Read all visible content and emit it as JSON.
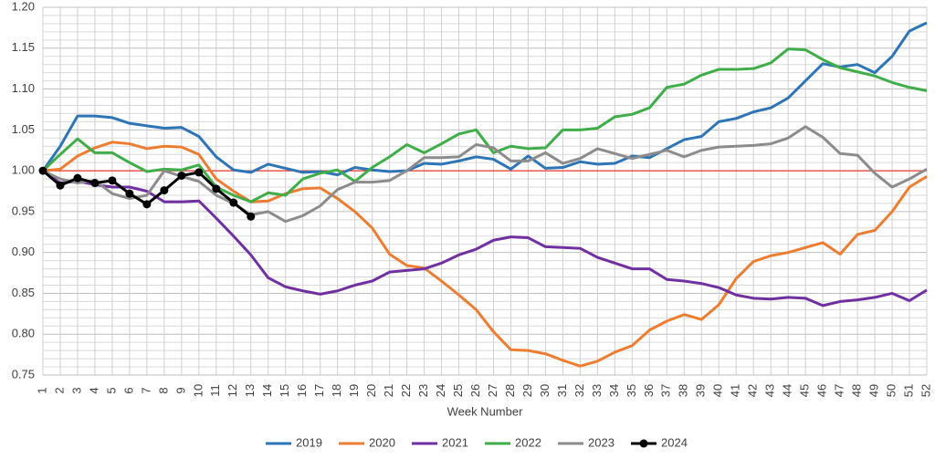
{
  "chart_data": {
    "type": "line",
    "x_label": "Week Number",
    "categories": [
      "1",
      "2",
      "3",
      "4",
      "5",
      "6",
      "7",
      "8",
      "9",
      "10",
      "11",
      "12",
      "13",
      "14",
      "15",
      "16",
      "17",
      "18",
      "19",
      "20",
      "21",
      "22",
      "23",
      "24",
      "25",
      "26",
      "27",
      "28",
      "29",
      "30",
      "31",
      "32",
      "33",
      "34",
      "35",
      "36",
      "37",
      "38",
      "39",
      "40",
      "41",
      "42",
      "43",
      "44",
      "45",
      "46",
      "47",
      "48",
      "49",
      "50",
      "51",
      "52"
    ],
    "ylim": [
      0.75,
      1.2
    ],
    "yticks": [
      0.75,
      {
        "value": 0.8,
        "label": "0.80"
      },
      0.85,
      {
        "value": 0.9,
        "label": "0.90"
      },
      0.95,
      {
        "value": 1.0,
        "label": "1.00"
      },
      1.05,
      {
        "value": 1.1,
        "label": "1.10"
      },
      1.15,
      {
        "value": 1.2,
        "label": "1.20"
      }
    ],
    "grid": true,
    "reference_line": {
      "value": 1.0,
      "color": "#e8382c"
    },
    "legend": "bottom",
    "series": [
      {
        "name": "2019",
        "color": "#2e75b6",
        "values": [
          1.0,
          1.03,
          1.067,
          1.067,
          1.065,
          1.058,
          1.055,
          1.052,
          1.053,
          1.042,
          1.017,
          1.001,
          0.998,
          1.008,
          1.003,
          0.998,
          0.999,
          0.995,
          1.004,
          1.001,
          0.999,
          1.0,
          1.009,
          1.008,
          1.012,
          1.017,
          1.014,
          1.002,
          1.018,
          1.003,
          1.004,
          1.011,
          1.008,
          1.009,
          1.018,
          1.016,
          1.027,
          1.038,
          1.042,
          1.06,
          1.064,
          1.072,
          1.077,
          1.089,
          1.11,
          1.131,
          1.127,
          1.13,
          1.12,
          1.14,
          1.171,
          1.181
        ]
      },
      {
        "name": "2020",
        "color": "#ed7d31",
        "values": [
          1.0,
          1.002,
          1.018,
          1.028,
          1.035,
          1.033,
          1.027,
          1.03,
          1.029,
          1.02,
          0.99,
          0.975,
          0.962,
          0.963,
          0.972,
          0.978,
          0.979,
          0.966,
          0.95,
          0.93,
          0.898,
          0.884,
          0.881,
          0.865,
          0.848,
          0.83,
          0.803,
          0.781,
          0.78,
          0.776,
          0.768,
          0.761,
          0.767,
          0.778,
          0.786,
          0.805,
          0.816,
          0.824,
          0.818,
          0.836,
          0.868,
          0.889,
          0.896,
          0.9,
          0.906,
          0.912,
          0.898,
          0.922,
          0.927,
          0.95,
          0.98,
          0.993
        ]
      },
      {
        "name": "2021",
        "color": "#7030a0",
        "values": [
          1.0,
          0.985,
          0.987,
          0.983,
          0.98,
          0.98,
          0.975,
          0.962,
          0.962,
          0.963,
          0.942,
          0.92,
          0.897,
          0.869,
          0.858,
          0.853,
          0.849,
          0.853,
          0.86,
          0.865,
          0.876,
          0.878,
          0.88,
          0.887,
          0.897,
          0.904,
          0.915,
          0.919,
          0.918,
          0.907,
          0.906,
          0.905,
          0.894,
          0.887,
          0.88,
          0.88,
          0.867,
          0.865,
          0.862,
          0.857,
          0.848,
          0.844,
          0.843,
          0.845,
          0.844,
          0.835,
          0.84,
          0.842,
          0.845,
          0.85,
          0.841,
          0.854
        ]
      },
      {
        "name": "2022",
        "color": "#3fae49",
        "values": [
          1.0,
          1.02,
          1.039,
          1.022,
          1.022,
          1.01,
          0.999,
          1.002,
          1.001,
          1.007,
          0.98,
          0.97,
          0.962,
          0.973,
          0.97,
          0.99,
          0.997,
          1.001,
          0.987,
          1.004,
          1.017,
          1.032,
          1.022,
          1.033,
          1.045,
          1.05,
          1.022,
          1.03,
          1.027,
          1.028,
          1.05,
          1.05,
          1.052,
          1.066,
          1.069,
          1.077,
          1.102,
          1.106,
          1.117,
          1.124,
          1.124,
          1.125,
          1.132,
          1.149,
          1.148,
          1.136,
          1.126,
          1.121,
          1.116,
          1.108,
          1.102,
          1.098
        ]
      },
      {
        "name": "2023",
        "color": "#8c8c8c",
        "values": [
          1.0,
          0.99,
          0.985,
          0.988,
          0.972,
          0.966,
          0.97,
          1.0,
          0.993,
          0.987,
          0.97,
          0.96,
          0.946,
          0.95,
          0.938,
          0.945,
          0.957,
          0.977,
          0.986,
          0.986,
          0.988,
          1.0,
          1.016,
          1.016,
          1.017,
          1.032,
          1.028,
          1.012,
          1.012,
          1.022,
          1.009,
          1.015,
          1.027,
          1.021,
          1.015,
          1.02,
          1.025,
          1.017,
          1.025,
          1.029,
          1.03,
          1.031,
          1.033,
          1.04,
          1.054,
          1.041,
          1.021,
          1.019,
          0.997,
          0.98,
          0.99,
          1.002
        ]
      },
      {
        "name": "2024",
        "color": "#000000",
        "markers": true,
        "values": [
          1.0,
          0.982,
          0.991,
          0.985,
          0.988,
          0.972,
          0.959,
          0.976,
          0.994,
          0.998,
          0.978,
          0.961,
          0.944,
          null,
          null,
          null,
          null,
          null,
          null,
          null,
          null,
          null,
          null,
          null,
          null,
          null,
          null,
          null,
          null,
          null,
          null,
          null,
          null,
          null,
          null,
          null,
          null,
          null,
          null,
          null,
          null,
          null,
          null,
          null,
          null,
          null,
          null,
          null,
          null,
          null,
          null,
          null
        ]
      }
    ]
  }
}
